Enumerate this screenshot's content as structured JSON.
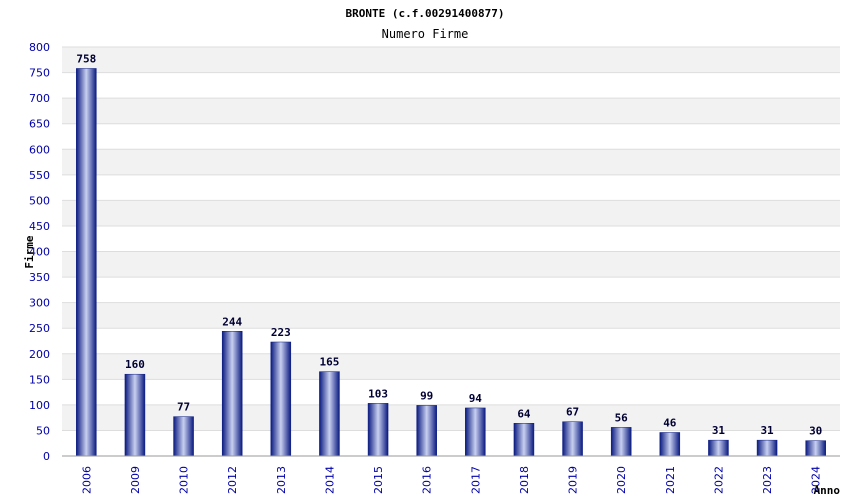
{
  "chart_data": {
    "type": "bar",
    "title": "BRONTE (c.f.00291400877)",
    "subtitle": "Numero Firme",
    "xlabel": "Anno",
    "ylabel": "Firme",
    "ylim": [
      0,
      800
    ],
    "yticks": [
      "0",
      "50",
      "100",
      "150",
      "200",
      "250",
      "300",
      "350",
      "400",
      "450",
      "500",
      "550",
      "600",
      "650",
      "700",
      "750",
      "800"
    ],
    "categories": [
      "2006",
      "2009",
      "2010",
      "2012",
      "2013",
      "2014",
      "2015",
      "2016",
      "2017",
      "2018",
      "2019",
      "2020",
      "2021",
      "2022",
      "2023",
      "2024"
    ],
    "values": [
      758,
      160,
      77,
      244,
      223,
      165,
      103,
      99,
      94,
      64,
      67,
      56,
      46,
      31,
      31,
      30
    ],
    "value_labels": [
      "758",
      "160",
      "77",
      "244",
      "223",
      "165",
      "103",
      "99",
      "94",
      "64",
      "67",
      "56",
      "46",
      "31",
      "31",
      "30"
    ],
    "grid": true,
    "legend": "none",
    "colors": {
      "bar_dark": "#0a1a80",
      "bar_light": "#c8d0f0",
      "band": "#f2f2f2",
      "axis_text": "#0000aa"
    }
  }
}
